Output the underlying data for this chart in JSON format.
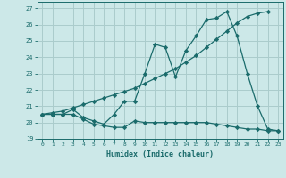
{
  "xlabel": "Humidex (Indice chaleur)",
  "bg_color": "#cce8e8",
  "grid_color": "#aacccc",
  "line_color": "#1a6b6b",
  "xlim": [
    -0.5,
    23.5
  ],
  "ylim": [
    19.0,
    27.4
  ],
  "yticks": [
    19,
    20,
    21,
    22,
    23,
    24,
    25,
    26,
    27
  ],
  "xticks": [
    0,
    1,
    2,
    3,
    4,
    5,
    6,
    7,
    8,
    9,
    10,
    11,
    12,
    13,
    14,
    15,
    16,
    17,
    18,
    19,
    20,
    21,
    22,
    23
  ],
  "line1_x": [
    0,
    1,
    2,
    3,
    4,
    5,
    6,
    7,
    8,
    9,
    10,
    11,
    12,
    13,
    14,
    15,
    16,
    17,
    18,
    19,
    20,
    21,
    22
  ],
  "line1_y": [
    20.5,
    20.6,
    20.7,
    20.9,
    21.1,
    21.3,
    21.5,
    21.7,
    21.9,
    22.1,
    22.4,
    22.7,
    23.0,
    23.3,
    23.7,
    24.1,
    24.6,
    25.1,
    25.6,
    26.1,
    26.5,
    26.7,
    26.8
  ],
  "line2_x": [
    0,
    1,
    2,
    3,
    4,
    5,
    6,
    7,
    8,
    9,
    10,
    11,
    12,
    13,
    14,
    15,
    16,
    17,
    18,
    19,
    20,
    21,
    22,
    23
  ],
  "line2_y": [
    20.5,
    20.5,
    20.5,
    20.8,
    20.3,
    20.1,
    19.9,
    20.5,
    21.3,
    21.3,
    23.0,
    24.8,
    24.6,
    22.8,
    24.4,
    25.3,
    26.3,
    26.4,
    26.8,
    25.3,
    23.0,
    21.0,
    19.6,
    19.5
  ],
  "line3_x": [
    0,
    1,
    2,
    3,
    4,
    5,
    6,
    7,
    8,
    9,
    10,
    11,
    12,
    13,
    14,
    15,
    16,
    17,
    18,
    19,
    20,
    21,
    22,
    23
  ],
  "line3_y": [
    20.5,
    20.5,
    20.5,
    20.5,
    20.2,
    19.9,
    19.8,
    19.7,
    19.7,
    20.1,
    20.0,
    20.0,
    20.0,
    20.0,
    20.0,
    20.0,
    20.0,
    19.9,
    19.8,
    19.7,
    19.6,
    19.6,
    19.5,
    19.5
  ]
}
